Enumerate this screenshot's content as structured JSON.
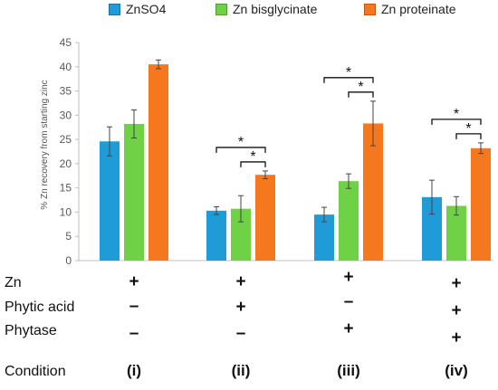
{
  "chart_data": {
    "type": "bar",
    "ylabel": "% Zn recovery from starting zinc",
    "ylim": [
      0,
      45
    ],
    "yticks": [
      0,
      5,
      10,
      15,
      20,
      25,
      30,
      35,
      40,
      45
    ],
    "categories": [
      "(i)",
      "(ii)",
      "(iii)",
      "(iv)"
    ],
    "series": [
      {
        "name": "ZnSO4",
        "color": "#1f9bd7",
        "values": [
          24.6,
          10.3,
          9.5,
          13.1
        ],
        "errors": [
          3.0,
          0.8,
          1.5,
          3.5
        ]
      },
      {
        "name": "Zn bisglycinate",
        "color": "#6fd146",
        "values": [
          28.2,
          10.7,
          16.4,
          11.3
        ],
        "errors": [
          2.9,
          2.7,
          1.5,
          1.9
        ]
      },
      {
        "name": "Zn proteinate",
        "color": "#f5781f",
        "values": [
          40.5,
          17.7,
          28.3,
          23.2
        ],
        "errors": [
          0.9,
          0.8,
          4.6,
          1.1
        ]
      }
    ],
    "significance": [
      {
        "group": 1,
        "from_series": 0,
        "to_series": 2,
        "label": "*"
      },
      {
        "group": 1,
        "from_series": 1,
        "to_series": 2,
        "label": "*"
      },
      {
        "group": 2,
        "from_series": 0,
        "to_series": 2,
        "label": "*"
      },
      {
        "group": 2,
        "from_series": 1,
        "to_series": 2,
        "label": "*"
      },
      {
        "group": 3,
        "from_series": 0,
        "to_series": 2,
        "label": "*"
      },
      {
        "group": 3,
        "from_series": 1,
        "to_series": 2,
        "label": "*"
      }
    ],
    "grid": false
  },
  "table": {
    "rows": [
      {
        "label": "Zn",
        "cells": [
          "+",
          "+",
          "+",
          "+"
        ]
      },
      {
        "label": "Phytic acid",
        "cells": [
          "–",
          "+",
          "–",
          "+"
        ]
      },
      {
        "label": "Phytase",
        "cells": [
          "–",
          "–",
          "+",
          "+"
        ]
      }
    ],
    "condition_label": "Condition"
  }
}
